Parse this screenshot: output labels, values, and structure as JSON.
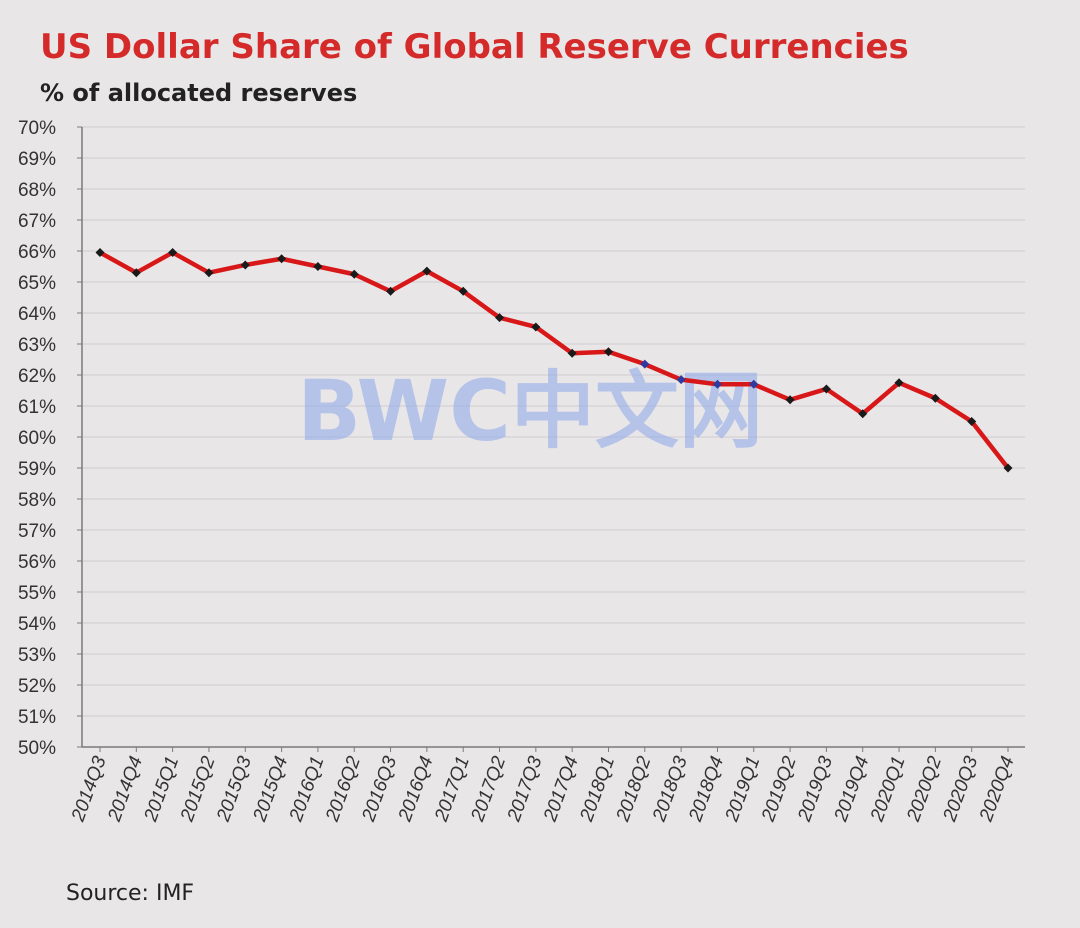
{
  "colors": {
    "title": "#d42a2a",
    "line": "#d81818",
    "marker": "#1a1a1a",
    "marker_alt": "#2f3aa0",
    "grid": "#cfccd0",
    "axis": "#7a7a7a",
    "text": "#222222",
    "watermark": "#8ea8ea"
  },
  "watermark": "BWC中文网",
  "chart_data": {
    "type": "line",
    "title": "US Dollar Share of Global Reserve Currencies",
    "subtitle": "% of allocated reserves",
    "ylabel": "",
    "xlabel": "",
    "ylim": [
      50,
      70
    ],
    "yticks": [
      {
        "value": 70,
        "label": "70%"
      },
      {
        "value": 69,
        "label": "69%"
      },
      {
        "value": 68,
        "label": "68%"
      },
      {
        "value": 67,
        "label": "67%"
      },
      {
        "value": 66,
        "label": "66%"
      },
      {
        "value": 65,
        "label": "65%"
      },
      {
        "value": 64,
        "label": "64%"
      },
      {
        "value": 63,
        "label": "63%"
      },
      {
        "value": 62,
        "label": "62%"
      },
      {
        "value": 61,
        "label": "61%"
      },
      {
        "value": 60,
        "label": "60%"
      },
      {
        "value": 59,
        "label": "59%"
      },
      {
        "value": 58,
        "label": "58%"
      },
      {
        "value": 57,
        "label": "57%"
      },
      {
        "value": 56,
        "label": "56%"
      },
      {
        "value": 55,
        "label": "55%"
      },
      {
        "value": 54,
        "label": "54%"
      },
      {
        "value": 53,
        "label": "53%"
      },
      {
        "value": 52,
        "label": "52%"
      },
      {
        "value": 51,
        "label": "51%"
      },
      {
        "value": 50,
        "label": "50%"
      }
    ],
    "categories": [
      "2014Q3",
      "2014Q4",
      "2015Q1",
      "2015Q2",
      "2015Q3",
      "2015Q4",
      "2016Q1",
      "2016Q2",
      "2016Q3",
      "2016Q4",
      "2017Q1",
      "2017Q2",
      "2017Q3",
      "2017Q4",
      "2018Q1",
      "2018Q2",
      "2018Q3",
      "2018Q4",
      "2019Q1",
      "2019Q2",
      "2019Q3",
      "2019Q4",
      "2020Q1",
      "2020Q2",
      "2020Q3",
      "2020Q4"
    ],
    "series": [
      {
        "name": "US Dollar share",
        "values": [
          65.95,
          65.3,
          65.95,
          65.3,
          65.55,
          65.75,
          65.5,
          65.25,
          64.7,
          65.35,
          64.7,
          63.85,
          63.55,
          62.7,
          62.75,
          62.35,
          61.85,
          61.7,
          61.7,
          61.2,
          61.55,
          60.75,
          61.75,
          61.25,
          60.5,
          59.0
        ]
      }
    ],
    "grid": true,
    "source": "Source: IMF"
  }
}
